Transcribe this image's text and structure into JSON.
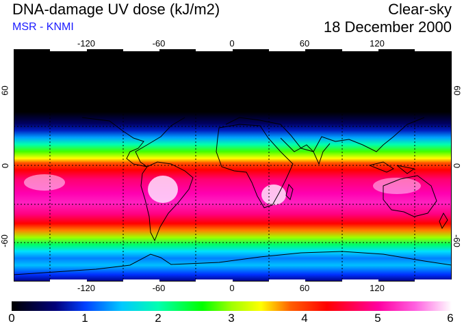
{
  "header": {
    "title": "DNA-damage UV dose (kJ/m2)",
    "subtitle": "MSR - KNMI",
    "mode": "Clear-sky",
    "date": "18 December 2000"
  },
  "map": {
    "lon_ticks": [
      "-120",
      "-60",
      "0",
      "60",
      "120"
    ],
    "lat_ticks_left": [
      "60",
      "0",
      "-60"
    ],
    "lat_ticks_right": [
      "60",
      "0",
      "-60"
    ]
  },
  "colorbar": {
    "labels": [
      "0",
      "1",
      "2",
      "3",
      "4",
      "5",
      "6"
    ],
    "min": 0,
    "max": 6,
    "stops": [
      {
        "value": 0.0,
        "color": "#000000"
      },
      {
        "value": 0.6,
        "color": "#00007a"
      },
      {
        "value": 1.0,
        "color": "#0040ff"
      },
      {
        "value": 1.5,
        "color": "#00c8ff"
      },
      {
        "value": 2.0,
        "color": "#00ffb0"
      },
      {
        "value": 2.6,
        "color": "#00ff00"
      },
      {
        "value": 3.0,
        "color": "#a0ff00"
      },
      {
        "value": 3.4,
        "color": "#ffff00"
      },
      {
        "value": 3.8,
        "color": "#ff6000"
      },
      {
        "value": 4.3,
        "color": "#ff0000"
      },
      {
        "value": 5.0,
        "color": "#ff00a0"
      },
      {
        "value": 5.5,
        "color": "#ff60e0"
      },
      {
        "value": 6.0,
        "color": "#ffffff"
      }
    ]
  },
  "colors": {
    "subtitle": "#1a1aff",
    "coastline": "#000000",
    "grid": "#000000"
  }
}
